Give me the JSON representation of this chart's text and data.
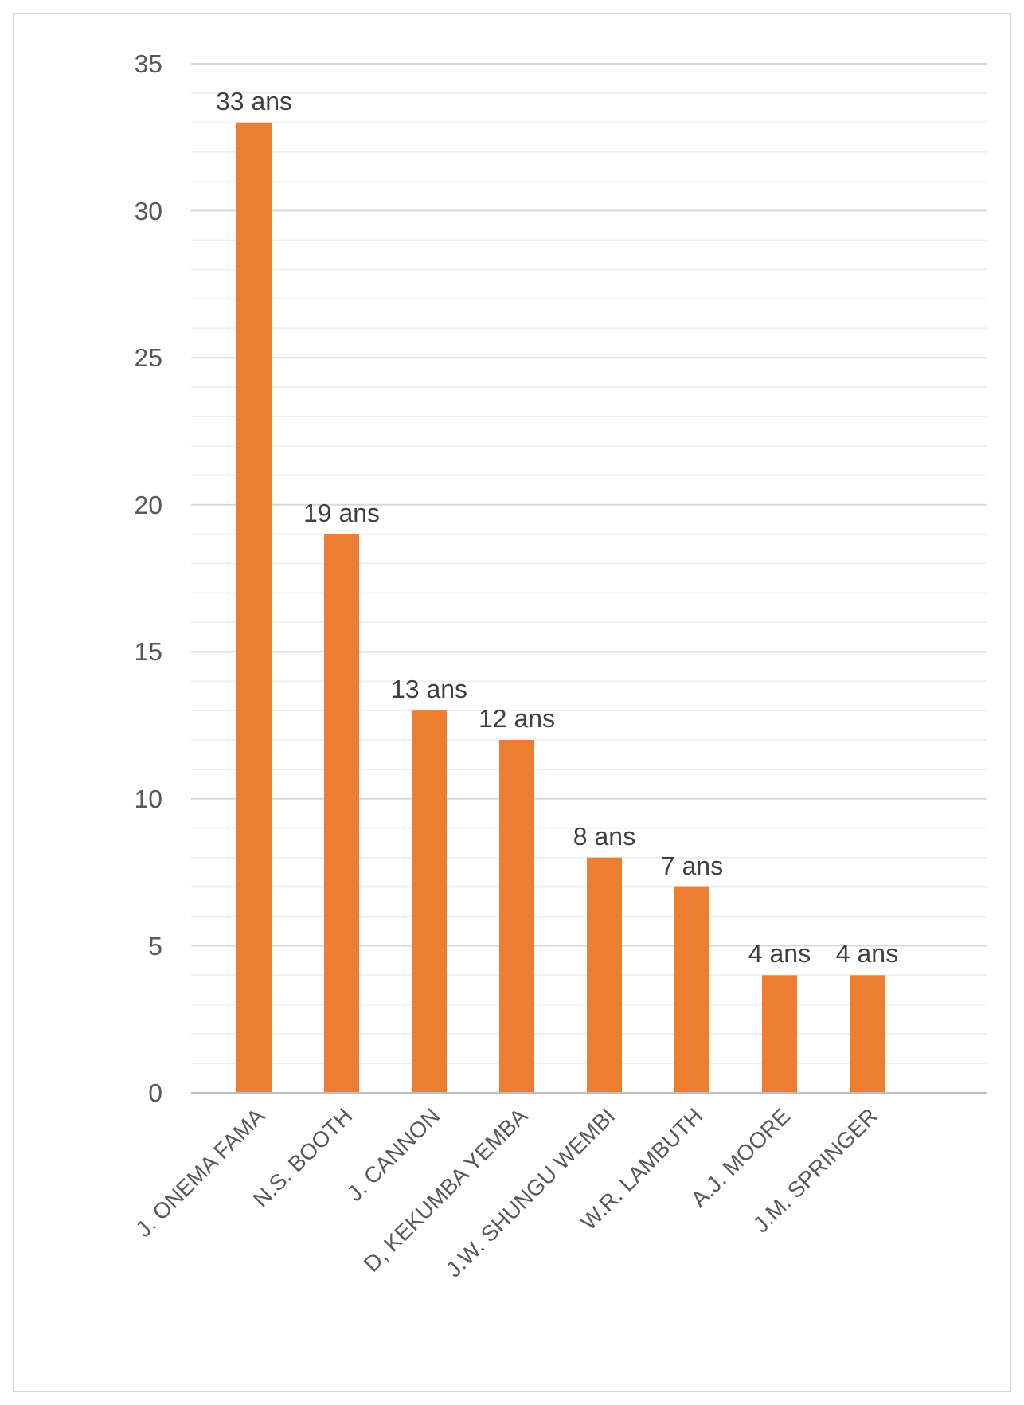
{
  "chart_data": {
    "type": "bar",
    "categories": [
      "J. ONEMA FAMA",
      "N.S. BOOTH",
      "J. CANNON",
      "D, KEKUMBA YEMBA",
      "J.W. SHUNGU WEMBI",
      "W.R. LAMBUTH",
      "A.J. MOORE",
      "J.M. SPRINGER"
    ],
    "values": [
      33,
      19,
      13,
      12,
      8,
      7,
      4,
      4
    ],
    "value_labels": [
      "33 ans",
      "19 ans",
      "13 ans",
      "12 ans",
      "8 ans",
      "7 ans",
      "4 ans",
      "4 ans"
    ],
    "color": "#ed7d31",
    "ylim": [
      0,
      35
    ],
    "yticks": [
      0,
      {
        "value": 1,
        "label": null
      },
      {
        "value": 2,
        "label": null
      },
      {
        "value": 3,
        "label": null
      },
      {
        "value": 4,
        "label": null
      },
      5,
      {
        "value": 6,
        "label": null
      },
      {
        "value": 7,
        "label": null
      },
      {
        "value": 8,
        "label": null
      },
      {
        "value": 9,
        "label": null
      },
      10,
      {
        "value": 11,
        "label": null
      },
      {
        "value": 12,
        "label": null
      },
      {
        "value": 13,
        "label": null
      },
      {
        "value": 14,
        "label": null
      },
      15,
      {
        "value": 16,
        "label": null
      },
      {
        "value": 17,
        "label": null
      },
      {
        "value": 18,
        "label": null
      },
      {
        "value": 19,
        "label": null
      },
      20,
      {
        "value": 21,
        "label": null
      },
      {
        "value": 22,
        "label": null
      },
      {
        "value": 23,
        "label": null
      },
      {
        "value": 24,
        "label": null
      },
      25,
      {
        "value": 26,
        "label": null
      },
      {
        "value": 27,
        "label": null
      },
      {
        "value": 28,
        "label": null
      },
      {
        "value": 29,
        "label": null
      },
      30,
      {
        "value": 31,
        "label": null
      },
      {
        "value": 32,
        "label": null
      },
      {
        "value": 33,
        "label": null
      },
      {
        "value": 34,
        "label": null
      },
      35
    ],
    "grid": "y"
  }
}
